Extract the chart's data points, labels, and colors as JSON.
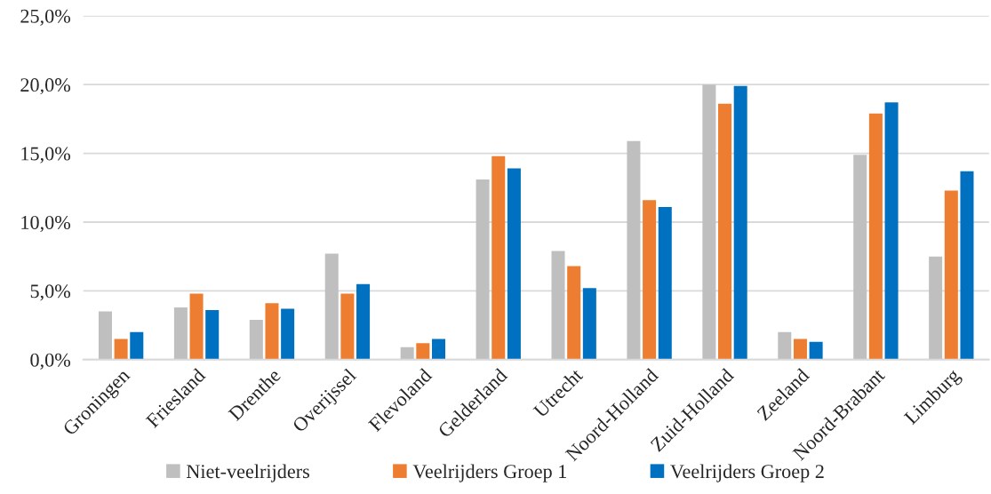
{
  "chart_data": {
    "type": "bar",
    "categories": [
      "Groningen",
      "Friesland",
      "Drenthe",
      "Overijssel",
      "Flevoland",
      "Gelderland",
      "Utrecht",
      "Noord-Holland",
      "Zuid-Holland",
      "Zeeland",
      "Noord-Brabant",
      "Limburg"
    ],
    "series": [
      {
        "name": "Niet-veelrijders",
        "color": "#bfbfbf",
        "values": [
          3.5,
          3.8,
          2.9,
          7.7,
          0.9,
          13.1,
          7.9,
          15.9,
          20.0,
          2.0,
          14.9,
          7.5
        ]
      },
      {
        "name": "Veelrijders Groep 1",
        "color": "#ed7d31",
        "values": [
          1.5,
          4.8,
          4.1,
          4.8,
          1.2,
          14.8,
          6.8,
          11.6,
          18.6,
          1.5,
          17.9,
          12.3
        ]
      },
      {
        "name": "Veelrijders Groep 2",
        "color": "#0070c0",
        "values": [
          2.0,
          3.6,
          3.7,
          5.5,
          1.5,
          13.9,
          5.2,
          11.1,
          19.9,
          1.3,
          18.7,
          13.7
        ]
      }
    ],
    "ylim": [
      0,
      25
    ],
    "yticks": [
      {
        "value": 0,
        "label": "0,0%"
      },
      {
        "value": 5,
        "label": "5,0%"
      },
      {
        "value": 10,
        "label": "10,0%"
      },
      {
        "value": 15,
        "label": "15,0%"
      },
      {
        "value": 20,
        "label": "20,0%"
      },
      {
        "value": 25,
        "label": "25,0%"
      }
    ],
    "grid": "y",
    "legend": "bottom"
  }
}
